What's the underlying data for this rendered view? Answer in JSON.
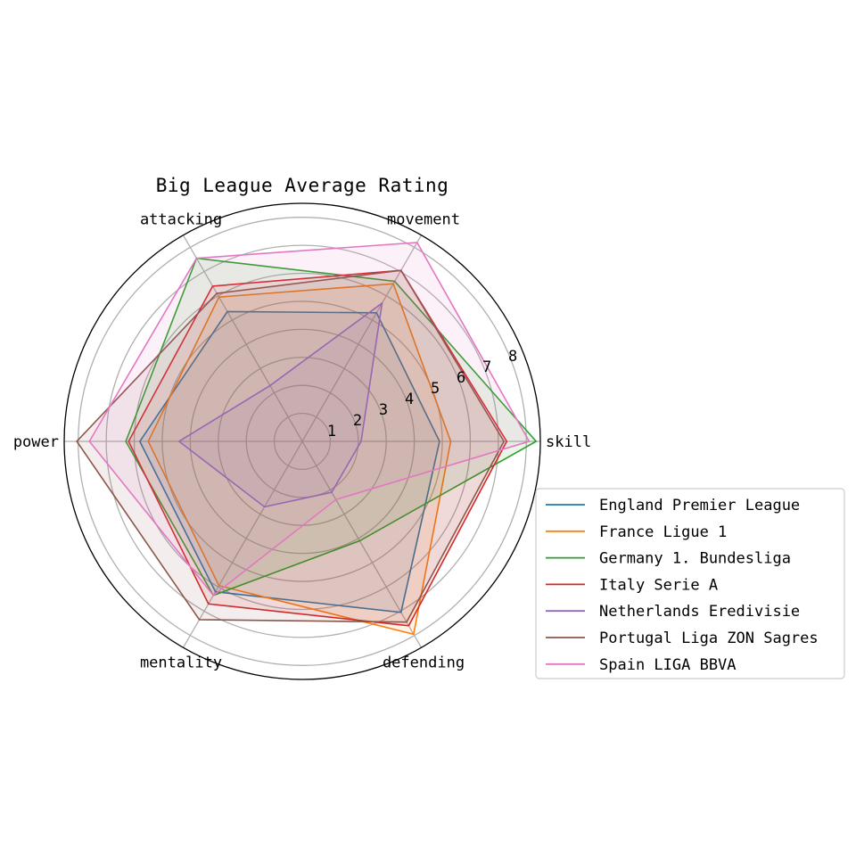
{
  "chart_data": {
    "type": "radar",
    "title": "Big League Average Rating",
    "axes": [
      "skill",
      "movement",
      "attacking",
      "power",
      "mentality",
      "defending"
    ],
    "rlim": [
      0,
      8.5
    ],
    "rticks": [
      1,
      2,
      3,
      4,
      5,
      6,
      7,
      8
    ],
    "grid": true,
    "legend_position": "right",
    "series": [
      {
        "name": "England Premier League",
        "color": "#1f77b4",
        "values": [
          4.9,
          5.3,
          5.35,
          5.8,
          6.2,
          7.05
        ]
      },
      {
        "name": "France Ligue 1",
        "color": "#ff7f0e",
        "values": [
          5.3,
          6.5,
          5.95,
          5.5,
          5.95,
          7.95
        ]
      },
      {
        "name": "Germany 1. Bundesliga",
        "color": "#2ca02c",
        "values": [
          8.35,
          6.6,
          7.55,
          6.3,
          6.35,
          4.1
        ]
      },
      {
        "name": "Italy Serie A",
        "color": "#d62728",
        "values": [
          7.3,
          7.05,
          6.4,
          6.2,
          6.7,
          7.6
        ]
      },
      {
        "name": "Netherlands Eredivisie",
        "color": "#9467bd",
        "values": [
          2.1,
          5.7,
          2.3,
          4.4,
          2.7,
          2.1
        ]
      },
      {
        "name": "Portugal Liga ZON Sagres",
        "color": "#8c564b",
        "values": [
          7.2,
          7.05,
          6.1,
          8.05,
          7.35,
          7.45
        ]
      },
      {
        "name": "Spain LIGA BBVA",
        "color": "#e377c2",
        "values": [
          8.1,
          8.2,
          7.55,
          7.6,
          6.35,
          2.4
        ]
      }
    ]
  }
}
